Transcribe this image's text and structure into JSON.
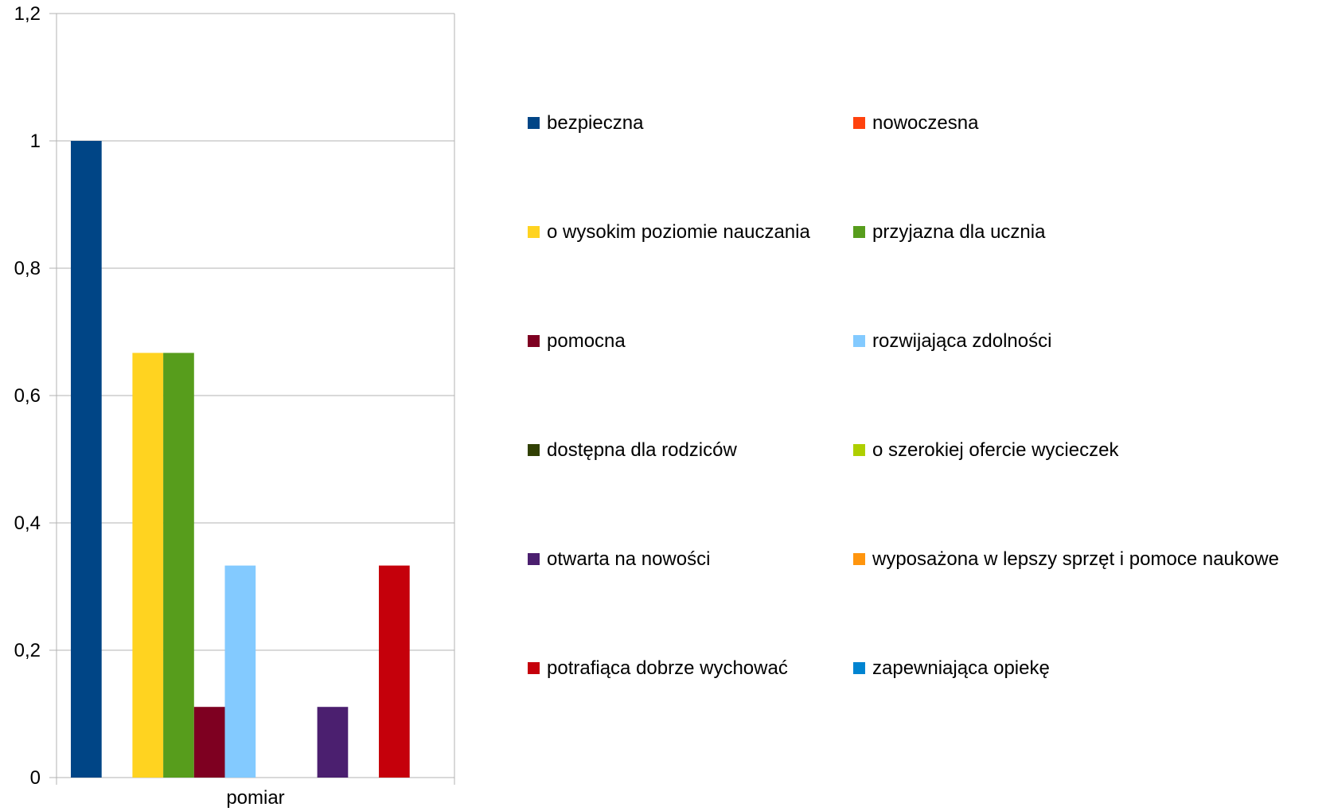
{
  "chart_data": {
    "type": "bar",
    "categories": [
      "pomiar"
    ],
    "series": [
      {
        "name": "bezpieczna",
        "values": [
          1.0
        ],
        "color": "#004586"
      },
      {
        "name": "nowoczesna",
        "values": [
          0
        ],
        "color": "#ff420e"
      },
      {
        "name": "o wysokim poziomie nauczania",
        "values": [
          0.667
        ],
        "color": "#ffd320"
      },
      {
        "name": "przyjazna dla ucznia",
        "values": [
          0.667
        ],
        "color": "#579d1c"
      },
      {
        "name": "pomocna",
        "values": [
          0.111
        ],
        "color": "#7e0021"
      },
      {
        "name": "rozwijająca zdolności",
        "values": [
          0.333
        ],
        "color": "#83caff"
      },
      {
        "name": "dostępna dla rodziców",
        "values": [
          0
        ],
        "color": "#314004"
      },
      {
        "name": "o szerokiej ofercie wycieczek",
        "values": [
          0
        ],
        "color": "#aecf00"
      },
      {
        "name": "otwarta na nowości",
        "values": [
          0.111
        ],
        "color": "#4b1f6f"
      },
      {
        "name": "wyposażona w lepszy sprzęt i pomoce naukowe",
        "values": [
          0
        ],
        "color": "#ff950e"
      },
      {
        "name": "potrafiąca dobrze wychować",
        "values": [
          0.333
        ],
        "color": "#c5000b"
      },
      {
        "name": "zapewniająca opiekę",
        "values": [
          0
        ],
        "color": "#0084d1"
      }
    ],
    "ylim": [
      0,
      1.2
    ],
    "yticks": [
      "0",
      "0,2",
      "0,4",
      "0,6",
      "0,8",
      "1",
      "1,2"
    ],
    "grid": true,
    "legend_position": "right",
    "legend_columns": 2,
    "title": "",
    "xlabel": "",
    "ylabel": ""
  }
}
